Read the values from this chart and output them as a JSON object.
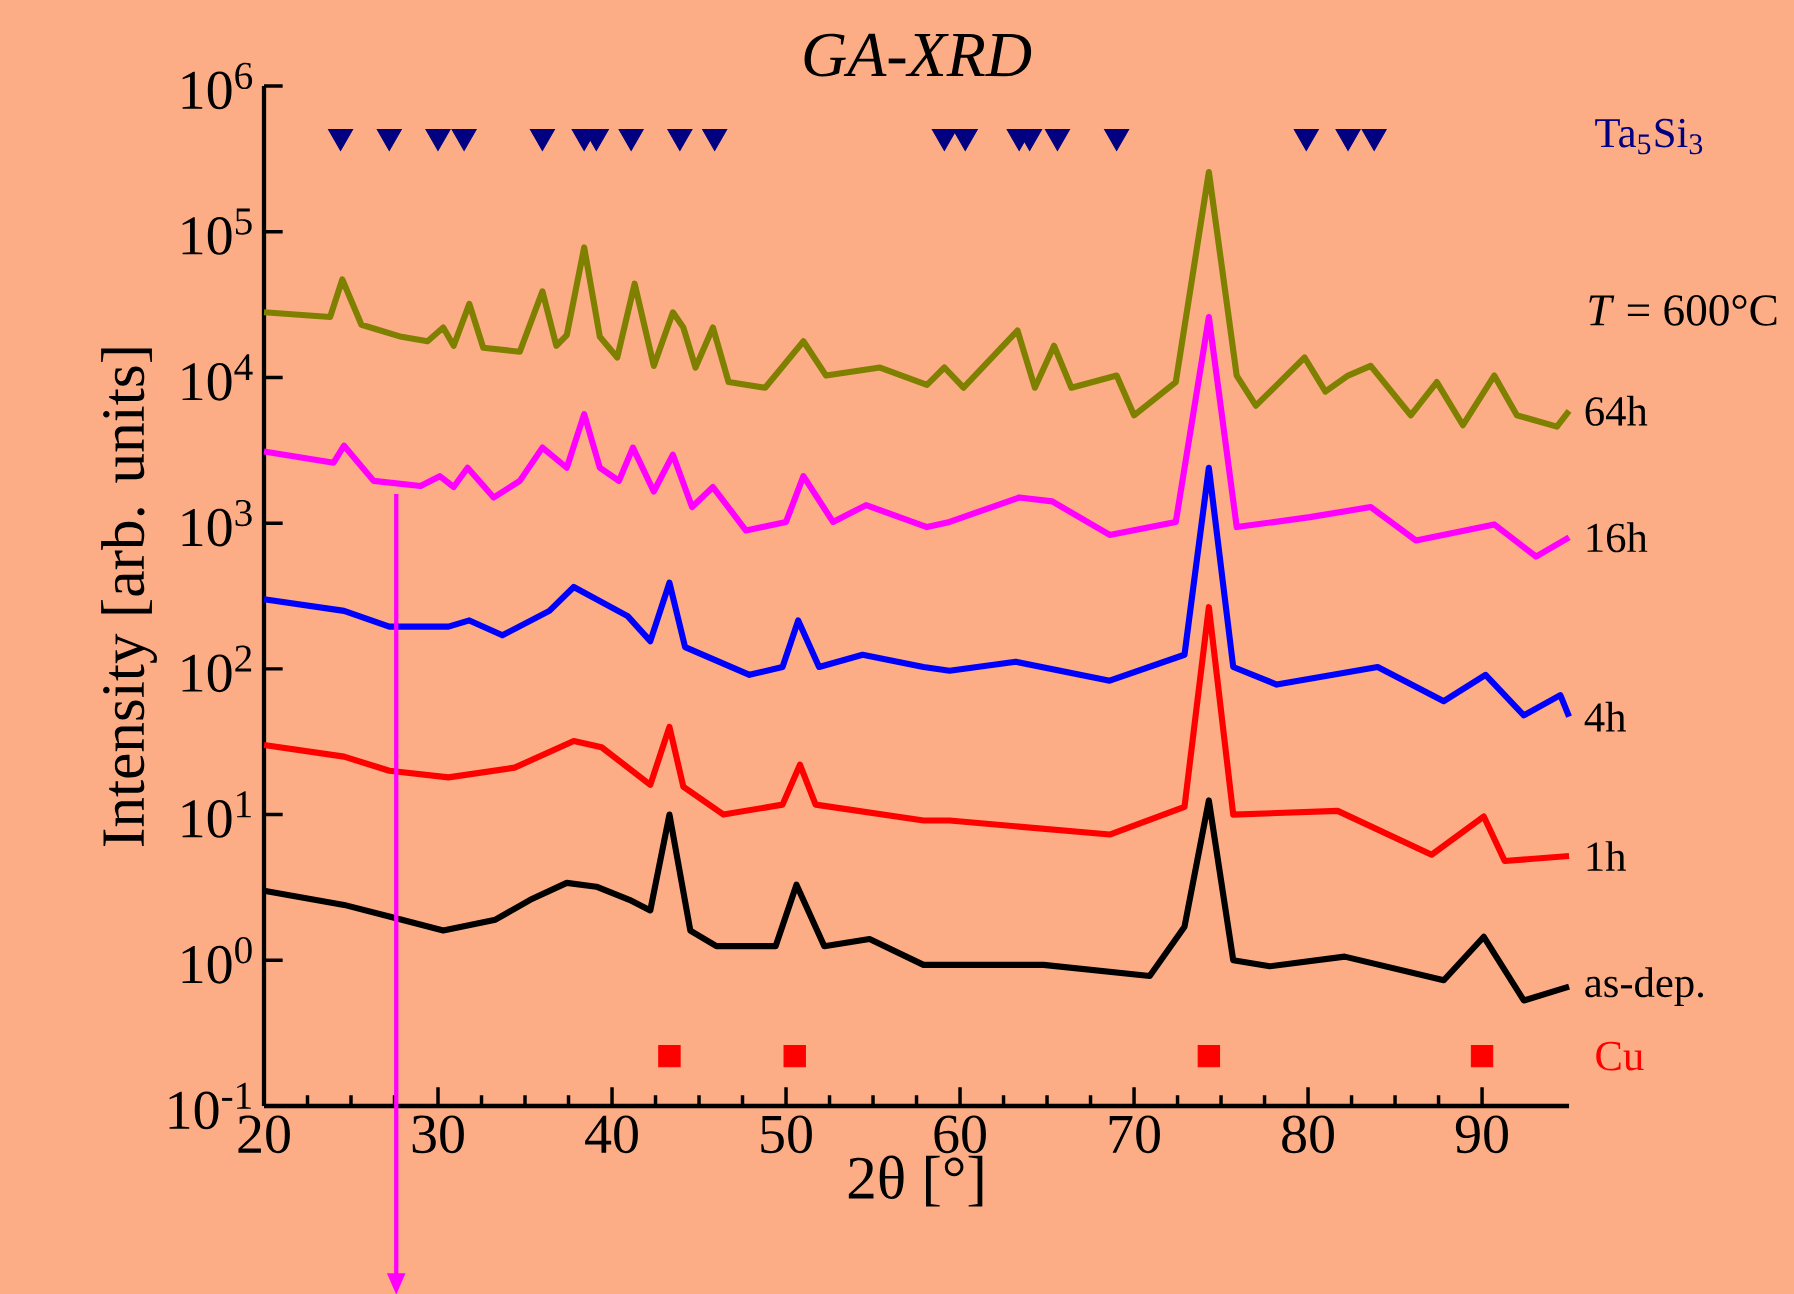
{
  "chart_data": {
    "type": "line",
    "title": "GA-XRD",
    "xlabel": "2θ [°]",
    "ylabel": "Intensity [arb. units]",
    "log": "y",
    "xlim": [
      20,
      95
    ],
    "ylim": [
      0.1,
      1000000
    ],
    "xticks": [
      20,
      30,
      40,
      50,
      60,
      70,
      80,
      90
    ],
    "yticks": [
      {
        "value": 0.1,
        "label": "10$^{-1}$"
      },
      {
        "value": 1,
        "label": "10$^{0}$"
      },
      {
        "value": 10,
        "label": "10$^{1}$"
      },
      {
        "value": 100,
        "label": "10$^{2}$"
      },
      {
        "value": 1000,
        "label": "10$^{3}$"
      },
      {
        "value": 10000,
        "label": "10$^{4}$"
      },
      {
        "value": 100000,
        "label": "10$^{5}$"
      },
      {
        "value": 1000000,
        "label": "10$^{6}$"
      }
    ],
    "annotations": [
      "*T* = 600°C"
    ],
    "ref_lines": [
      {
        "axis": "x",
        "value": 27.6,
        "color": "#ff00ff"
      }
    ],
    "series": [
      {
        "name": "as-dep.",
        "color": "#000000",
        "x": [
          20,
          24.6,
          27.2,
          30.3,
          33.3,
          35.3,
          37.4,
          39.1,
          41.0,
          42.2,
          43.3,
          44.5,
          46.0,
          49.4,
          50.6,
          52.2,
          54.8,
          57.9,
          59.4,
          64.8,
          70.9,
          72.9,
          74.3,
          75.7,
          77.8,
          82.1,
          87.8,
          90.1,
          92.4,
          95
        ],
        "values": [
          3.0,
          2.4,
          2.0,
          1.6,
          1.9,
          2.6,
          3.4,
          3.2,
          2.6,
          2.2,
          10,
          1.6,
          1.25,
          1.25,
          3.3,
          1.25,
          1.4,
          0.93,
          0.93,
          0.93,
          0.78,
          1.7,
          12.5,
          1.0,
          0.91,
          1.06,
          0.73,
          1.45,
          0.53,
          0.66
        ]
      },
      {
        "name": "1h",
        "color": "#ff0000",
        "x": [
          20,
          24.6,
          27.2,
          30.6,
          34.4,
          37.8,
          39.4,
          42.2,
          43.3,
          44.1,
          46.4,
          49.8,
          50.8,
          51.7,
          57.9,
          59.4,
          68.6,
          72.9,
          74.3,
          75.7,
          81.7,
          87.1,
          90.1,
          91.3,
          95
        ],
        "values": [
          30,
          25,
          20,
          18,
          21,
          32,
          29,
          16,
          40,
          15.5,
          10,
          11.7,
          22,
          11.7,
          9.1,
          9.1,
          7.3,
          11.3,
          265,
          10,
          10.6,
          5.3,
          9.7,
          4.8,
          5.2
        ]
      },
      {
        "name": "4h",
        "color": "#0000ff",
        "x": [
          20,
          24.6,
          27.2,
          30.6,
          31.8,
          33.7,
          36.4,
          37.8,
          40.9,
          42.2,
          43.3,
          44.2,
          47.9,
          49.8,
          50.7,
          51.9,
          54.4,
          57.9,
          59.4,
          63.2,
          68.6,
          72.9,
          74.3,
          75.7,
          78.2,
          84.0,
          87.8,
          90.2,
          92.4,
          94.5,
          95
        ],
        "values": [
          300,
          250,
          195,
          195,
          215,
          170,
          250,
          365,
          230,
          155,
          390,
          141,
          91,
          103,
          215,
          103,
          125,
          103,
          97,
          112,
          83,
          125,
          2400,
          103,
          78,
          103,
          60,
          91,
          48,
          66,
          47
        ]
      },
      {
        "name": "16h",
        "color": "#ff00ff",
        "x": [
          20,
          24.0,
          24.6,
          26.3,
          29.0,
          30.1,
          30.9,
          31.7,
          33.2,
          34.7,
          36.0,
          37.4,
          38.4,
          39.3,
          40.4,
          41.2,
          42.4,
          43.5,
          44.6,
          45.8,
          47.7,
          50.0,
          51.0,
          52.7,
          54.6,
          58.1,
          59.4,
          63.4,
          65.3,
          68.6,
          72.4,
          74.3,
          75.9,
          80.1,
          83.6,
          86.2,
          90.7,
          93.1,
          95
        ],
        "values": [
          3100,
          2600,
          3400,
          1950,
          1800,
          2100,
          1770,
          2400,
          1500,
          1950,
          3300,
          2400,
          5600,
          2400,
          1950,
          3300,
          1650,
          2950,
          1290,
          1770,
          890,
          1020,
          2100,
          1020,
          1330,
          940,
          1020,
          1500,
          1410,
          830,
          1020,
          26000,
          940,
          1100,
          1290,
          760,
          980,
          590,
          800
        ]
      },
      {
        "name": "64h",
        "color": "#808000",
        "x": [
          20,
          23.8,
          24.5,
          25.6,
          27.9,
          29.4,
          30.3,
          30.9,
          31.8,
          32.6,
          34.7,
          36.0,
          36.8,
          37.4,
          38.4,
          39.3,
          40.3,
          41.3,
          42.4,
          43.5,
          44.1,
          44.8,
          45.8,
          46.7,
          48.8,
          51.0,
          52.3,
          55.4,
          58.1,
          59.1,
          60.2,
          63.3,
          64.3,
          65.4,
          66.4,
          69.0,
          70.0,
          72.4,
          74.3,
          75.9,
          77.0,
          79.8,
          81.0,
          82.3,
          83.6,
          85.9,
          87.4,
          88.9,
          90.7,
          92.0,
          94.3,
          95
        ],
        "values": [
          28000,
          26000,
          47000,
          23000,
          19000,
          17700,
          22000,
          16500,
          32000,
          16000,
          15000,
          39000,
          16500,
          19500,
          78000,
          19000,
          13700,
          44000,
          12000,
          28000,
          22000,
          11700,
          22000,
          9300,
          8500,
          17700,
          10300,
          11700,
          8900,
          11700,
          8500,
          21000,
          8500,
          16500,
          8500,
          10300,
          5500,
          9300,
          257000,
          10300,
          6400,
          13700,
          8000,
          10300,
          12000,
          5500,
          9300,
          4700,
          10300,
          5500,
          4600,
          5900
        ]
      },
      {
        "name": "Ta$_{5}$Si$_{3}$",
        "type": "scatter",
        "marker": "triangle",
        "color": "#000080",
        "x": [
          24.4,
          27.2,
          30.0,
          31.5,
          36.0,
          38.4,
          39.1,
          41.1,
          43.9,
          45.9,
          59.1,
          60.3,
          63.4,
          64.0,
          65.6,
          69.0,
          79.9,
          82.3,
          83.8
        ],
        "values": [
          450000,
          450000,
          450000,
          450000,
          450000,
          450000,
          450000,
          450000,
          450000,
          450000,
          450000,
          450000,
          450000,
          450000,
          450000,
          450000,
          450000,
          450000,
          450000
        ]
      },
      {
        "name": "Cu",
        "type": "scatter",
        "marker": "square",
        "color": "#ff0000",
        "x": [
          43.3,
          50.5,
          74.3,
          90.0
        ],
        "values": [
          0.22,
          0.22,
          0.22,
          0.22
        ]
      }
    ]
  }
}
